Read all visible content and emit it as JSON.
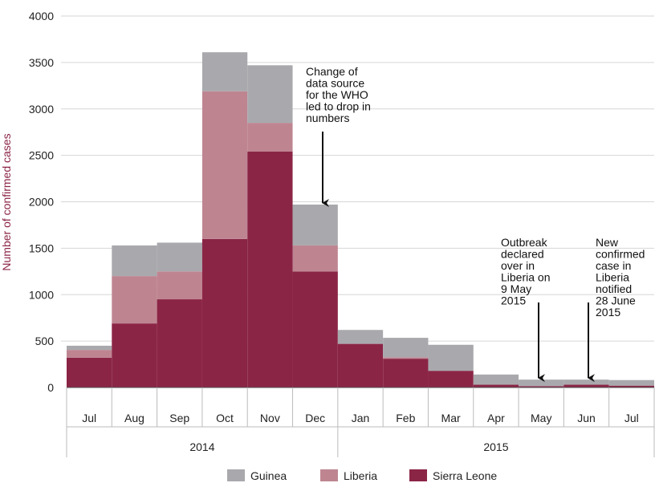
{
  "chart_data": {
    "type": "bar",
    "stacked": true,
    "ylabel": "Number of confirmed cases",
    "ylim": [
      0,
      4000
    ],
    "yticks": [
      0,
      500,
      1000,
      1500,
      2000,
      2500,
      3000,
      3500,
      4000
    ],
    "grid": "horizontal",
    "legend_position": "bottom",
    "categories": [
      "Jul",
      "Aug",
      "Sep",
      "Oct",
      "Nov",
      "Dec",
      "Jan",
      "Feb",
      "Mar",
      "Apr",
      "May",
      "Jun",
      "Jul"
    ],
    "year_groups": [
      {
        "label": "2014",
        "start": 0,
        "end": 5
      },
      {
        "label": "2015",
        "start": 6,
        "end": 12
      }
    ],
    "series": [
      {
        "name": "Sierra Leone",
        "color": "#8b2546",
        "values": [
          320,
          690,
          950,
          1600,
          2540,
          1250,
          470,
          310,
          180,
          30,
          15,
          30,
          20
        ]
      },
      {
        "name": "Liberia",
        "color": "#be8591",
        "values": [
          85,
          510,
          300,
          1590,
          310,
          280,
          0,
          15,
          0,
          0,
          0,
          0,
          0
        ]
      },
      {
        "name": "Guinea",
        "color": "#a9a9ad",
        "values": [
          45,
          330,
          310,
          420,
          620,
          440,
          150,
          210,
          280,
          110,
          70,
          55,
          60
        ]
      }
    ],
    "annotations": [
      {
        "lines": [
          "Change of",
          "data source",
          "for the WHO",
          "led to drop in",
          "numbers"
        ],
        "category_index": 5,
        "arrow_to": 1970
      },
      {
        "lines": [
          "Outbreak",
          "declared",
          "over in",
          "Liberia on",
          "9 May",
          "2015"
        ],
        "category_index": 10,
        "arrow_to": 85
      },
      {
        "lines": [
          "New",
          "confirmed",
          "case in",
          "Liberia",
          "notified",
          "28 June",
          "2015"
        ],
        "category_index": 11,
        "arrow_to": 85
      }
    ]
  }
}
